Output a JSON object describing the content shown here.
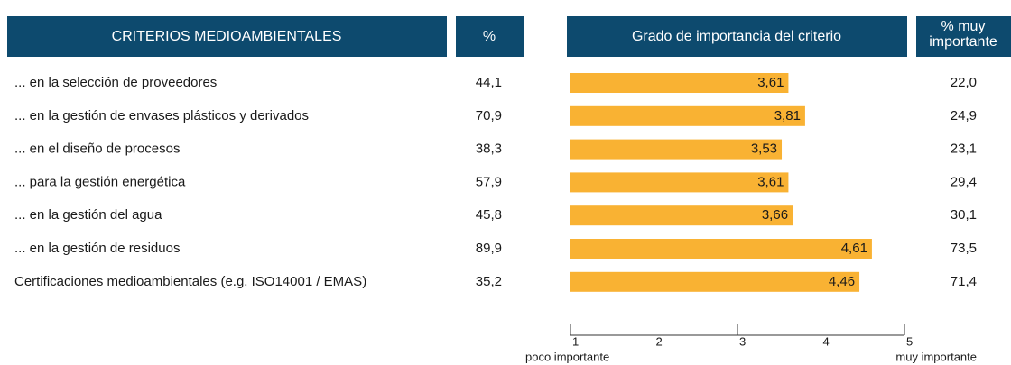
{
  "chart_data": {
    "type": "bar",
    "orientation": "horizontal",
    "header_label": "CRITERIOS MEDIOAMBIENTALES",
    "header_pct": "%",
    "title": "Grado de importancia del criterio",
    "header_muy": [
      "% muy",
      "importante"
    ],
    "categories": [
      "... en la selección de proveedores",
      "... en la gestión de envases plásticos y derivados",
      "... en el diseño de procesos",
      "... para la gestión energética",
      "... en la gestión del agua",
      "... en la gestión de residuos",
      "Certificaciones medioambientales (e.g, ISO14001 / EMAS)"
    ],
    "pct_values": [
      44.1,
      70.9,
      38.3,
      57.9,
      45.8,
      89.9,
      35.2
    ],
    "pct_labels": [
      "44,1",
      "70,9",
      "38,3",
      "57,9",
      "45,8",
      "89,9",
      "35,2"
    ],
    "values": [
      3.61,
      3.81,
      3.53,
      3.61,
      3.66,
      4.61,
      4.46
    ],
    "value_labels": [
      "3,61",
      "3,81",
      "3,53",
      "3,61",
      "3,66",
      "4,61",
      "4,46"
    ],
    "muy_values": [
      22.0,
      24.9,
      23.1,
      29.4,
      30.1,
      73.5,
      71.4
    ],
    "muy_labels": [
      "22,0",
      "24,9",
      "23,1",
      "29,4",
      "30,1",
      "73,5",
      "71,4"
    ],
    "color": "#f9b233",
    "header_color": "#0d4a6e",
    "xlim": [
      1,
      5
    ],
    "xticks": [
      1,
      2,
      3,
      4,
      5
    ],
    "xlabel_left": "poco importante",
    "xlabel_right": "muy importante"
  }
}
